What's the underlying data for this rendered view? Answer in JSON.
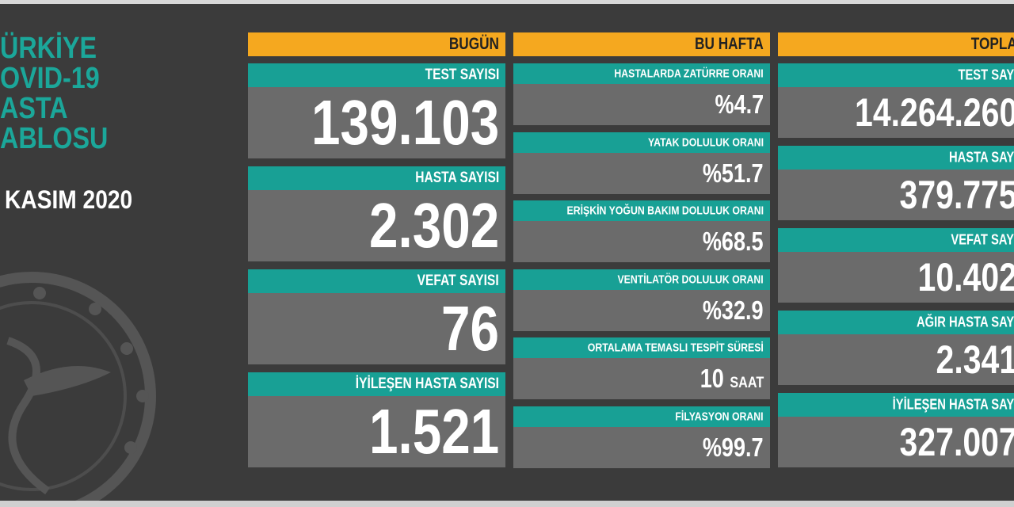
{
  "title": [
    "ÜRKİYE",
    "OVID-19",
    "ASTA",
    "ABLOSU"
  ],
  "date": "KASIM 2020",
  "columns": [
    {
      "header": "BUGÜN",
      "cards": [
        {
          "label": "TEST SAYISI",
          "value": "139.103"
        },
        {
          "label": "HASTA SAYISI",
          "value": "2.302"
        },
        {
          "label": "VEFAT SAYISI",
          "value": "76"
        },
        {
          "label": "İYİLEŞEN HASTA SAYISI",
          "value": "1.521"
        }
      ]
    },
    {
      "header": "BU HAFTA",
      "cards": [
        {
          "label": "HASTALARDA ZATÜRRE ORANI",
          "value": "%4.7"
        },
        {
          "label": "YATAK DOLULUK ORANI",
          "value": "%51.7"
        },
        {
          "label": "ERİŞKİN YOĞUN BAKIM DOLULUK ORANI",
          "value": "%68.5"
        },
        {
          "label": "VENTİLATÖR DOLULUK ORANI",
          "value": "%32.9"
        },
        {
          "label": "ORTALAMA TEMASLI TESPİT SÜRESİ",
          "value": "10",
          "unit": "SAAT"
        },
        {
          "label": "FİLYASYON ORANI",
          "value": "%99.7"
        }
      ]
    },
    {
      "header": "TOPLA",
      "cards": [
        {
          "label": "TEST SAYI",
          "value": "14.264.260"
        },
        {
          "label": "HASTA SAYI",
          "value": "379.775"
        },
        {
          "label": "VEFAT SAYI",
          "value": "10.402"
        },
        {
          "label": "AĞIR HASTA SAYI",
          "value": "2.341"
        },
        {
          "label": "İYİLEŞEN HASTA SAYI",
          "value": "327.007"
        }
      ]
    }
  ]
}
